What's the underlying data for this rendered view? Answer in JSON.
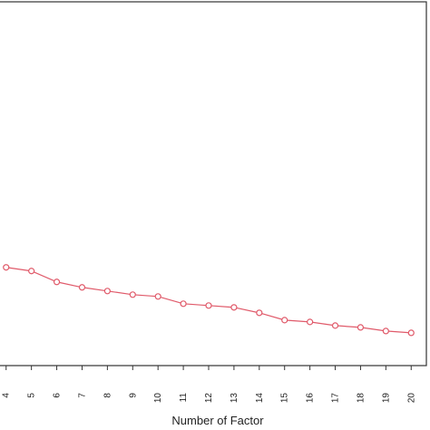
{
  "chart_data": {
    "type": "line",
    "xlabel": "Number of Factor",
    "ylabel": "",
    "title": "",
    "grid": false,
    "legend": "none",
    "colors": {
      "line": "#e05a6a",
      "marker": "#e05a6a",
      "frame": "#333333"
    },
    "xlim": [
      3.4,
      20.6
    ],
    "ylim": [
      0,
      1
    ],
    "categories": [
      "4",
      "5",
      "6",
      "7",
      "8",
      "9",
      "10",
      "11",
      "12",
      "13",
      "14",
      "15",
      "16",
      "17",
      "18",
      "19",
      "20"
    ],
    "x": [
      4,
      5,
      6,
      7,
      8,
      9,
      10,
      11,
      12,
      13,
      14,
      15,
      16,
      17,
      18,
      19,
      20
    ],
    "series": [
      {
        "values": [
          0.27,
          0.26,
          0.23,
          0.215,
          0.205,
          0.195,
          0.19,
          0.17,
          0.165,
          0.16,
          0.145,
          0.125,
          0.12,
          0.11,
          0.105,
          0.095,
          0.09
        ]
      }
    ]
  }
}
